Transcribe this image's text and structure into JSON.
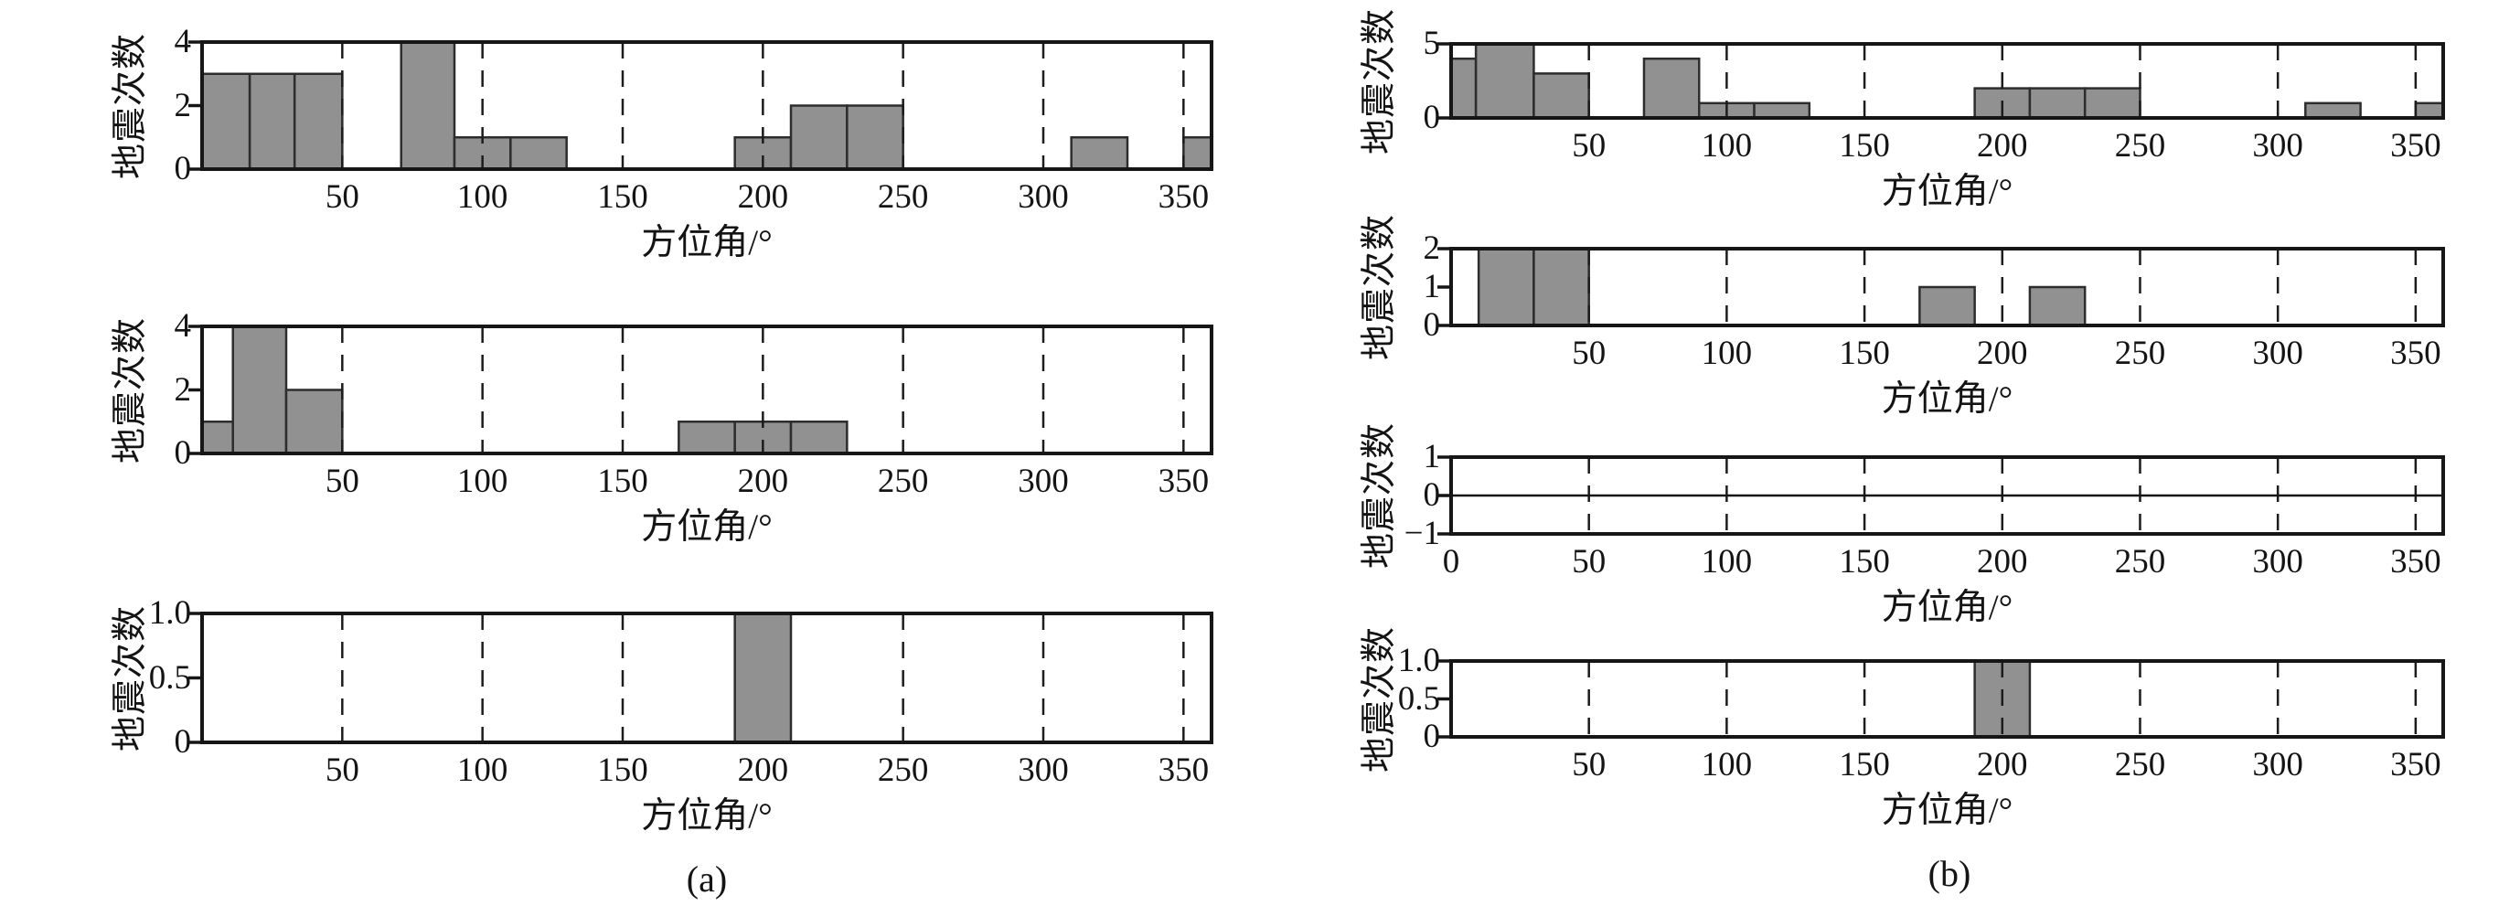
{
  "figure": {
    "background": "#ffffff",
    "x_axis_title": "方位角/°",
    "y_axis_title": "地震次数",
    "panels": [
      {
        "id": "a",
        "caption": "(a)"
      },
      {
        "id": "b",
        "caption": "(b)"
      }
    ]
  },
  "colors": {
    "bar_fill": "#919191",
    "bar_edge": "#2d2d2d",
    "axis_frame": "#161616",
    "gridline": "#1c1c1c",
    "text": "#141414"
  },
  "chart_data": [
    {
      "id": "a1",
      "panel": "a",
      "type": "bar",
      "xlabel": "方位角/°",
      "ylabel": "地震次数",
      "xlim": [
        0,
        360
      ],
      "ylim": [
        0,
        4
      ],
      "xticks": [
        {
          "v": 50,
          "label": "50"
        },
        {
          "v": 100,
          "label": "100"
        },
        {
          "v": 150,
          "label": "150"
        },
        {
          "v": 200,
          "label": "200"
        },
        {
          "v": 250,
          "label": "250"
        },
        {
          "v": 300,
          "label": "300"
        },
        {
          "v": 350,
          "label": "350"
        }
      ],
      "yticks": [
        {
          "v": 0,
          "label": "0"
        },
        {
          "v": 2,
          "label": "2"
        },
        {
          "v": 4,
          "label": "4"
        }
      ],
      "gridlines": [
        50,
        100,
        150,
        200,
        250,
        300,
        350
      ],
      "grid_over_bars": true,
      "zero_line": false,
      "bars": [
        {
          "x0": 0,
          "x1": 17,
          "count": 3
        },
        {
          "x0": 17,
          "x1": 33,
          "count": 3
        },
        {
          "x0": 33,
          "x1": 50,
          "count": 3
        },
        {
          "x0": 71,
          "x1": 90,
          "count": 4
        },
        {
          "x0": 90,
          "x1": 110,
          "count": 1
        },
        {
          "x0": 110,
          "x1": 130,
          "count": 1
        },
        {
          "x0": 190,
          "x1": 210,
          "count": 1
        },
        {
          "x0": 210,
          "x1": 230,
          "count": 2
        },
        {
          "x0": 230,
          "x1": 250,
          "count": 2
        },
        {
          "x0": 310,
          "x1": 330,
          "count": 1
        },
        {
          "x0": 350,
          "x1": 360,
          "count": 1
        }
      ]
    },
    {
      "id": "a2",
      "panel": "a",
      "type": "bar",
      "xlabel": "方位角/°",
      "ylabel": "地震次数",
      "xlim": [
        0,
        360
      ],
      "ylim": [
        0,
        4
      ],
      "xticks": [
        {
          "v": 50,
          "label": "50"
        },
        {
          "v": 100,
          "label": "100"
        },
        {
          "v": 150,
          "label": "150"
        },
        {
          "v": 200,
          "label": "200"
        },
        {
          "v": 250,
          "label": "250"
        },
        {
          "v": 300,
          "label": "300"
        },
        {
          "v": 350,
          "label": "350"
        }
      ],
      "yticks": [
        {
          "v": 0,
          "label": "0"
        },
        {
          "v": 2,
          "label": "2"
        },
        {
          "v": 4,
          "label": "4"
        }
      ],
      "gridlines": [
        50,
        100,
        150,
        200,
        250,
        300,
        350
      ],
      "grid_over_bars": true,
      "zero_line": false,
      "bars": [
        {
          "x0": 0,
          "x1": 11,
          "count": 1
        },
        {
          "x0": 11,
          "x1": 30,
          "count": 4
        },
        {
          "x0": 30,
          "x1": 50,
          "count": 2
        },
        {
          "x0": 170,
          "x1": 190,
          "count": 1
        },
        {
          "x0": 190,
          "x1": 210,
          "count": 1
        },
        {
          "x0": 210,
          "x1": 230,
          "count": 1
        }
      ]
    },
    {
      "id": "a3",
      "panel": "a",
      "type": "bar",
      "xlabel": "方位角/°",
      "ylabel": "地震次数",
      "xlim": [
        0,
        360
      ],
      "ylim": [
        0,
        1
      ],
      "xticks": [
        {
          "v": 50,
          "label": "50"
        },
        {
          "v": 100,
          "label": "100"
        },
        {
          "v": 150,
          "label": "150"
        },
        {
          "v": 200,
          "label": "200"
        },
        {
          "v": 250,
          "label": "250"
        },
        {
          "v": 300,
          "label": "300"
        },
        {
          "v": 350,
          "label": "350"
        }
      ],
      "yticks": [
        {
          "v": 0,
          "label": "0"
        },
        {
          "v": 0.5,
          "label": "0.5"
        },
        {
          "v": 1,
          "label": "1.0"
        }
      ],
      "gridlines": [
        50,
        100,
        150,
        200,
        250,
        300,
        350
      ],
      "grid_over_bars": false,
      "zero_line": false,
      "bars": [
        {
          "x0": 190,
          "x1": 210,
          "count": 1
        }
      ]
    },
    {
      "id": "b1",
      "panel": "b",
      "type": "bar",
      "xlabel": "方位角/°",
      "ylabel": "地震次数",
      "xlim": [
        0,
        360
      ],
      "ylim": [
        0,
        5
      ],
      "xticks": [
        {
          "v": 50,
          "label": "50"
        },
        {
          "v": 100,
          "label": "100"
        },
        {
          "v": 150,
          "label": "150"
        },
        {
          "v": 200,
          "label": "200"
        },
        {
          "v": 250,
          "label": "250"
        },
        {
          "v": 300,
          "label": "300"
        },
        {
          "v": 350,
          "label": "350"
        }
      ],
      "yticks": [
        {
          "v": 0,
          "label": "0"
        },
        {
          "v": 5,
          "label": "5"
        }
      ],
      "gridlines": [
        50,
        100,
        150,
        200,
        250,
        300,
        350
      ],
      "grid_over_bars": true,
      "zero_line": false,
      "bars": [
        {
          "x0": 0,
          "x1": 9,
          "count": 4
        },
        {
          "x0": 9,
          "x1": 30,
          "count": 5
        },
        {
          "x0": 30,
          "x1": 50,
          "count": 3
        },
        {
          "x0": 70,
          "x1": 90,
          "count": 4
        },
        {
          "x0": 90,
          "x1": 110,
          "count": 1
        },
        {
          "x0": 110,
          "x1": 130,
          "count": 1
        },
        {
          "x0": 190,
          "x1": 210,
          "count": 2
        },
        {
          "x0": 210,
          "x1": 230,
          "count": 2
        },
        {
          "x0": 230,
          "x1": 250,
          "count": 2
        },
        {
          "x0": 310,
          "x1": 330,
          "count": 1
        },
        {
          "x0": 350,
          "x1": 360,
          "count": 1
        }
      ]
    },
    {
      "id": "b2",
      "panel": "b",
      "type": "bar",
      "xlabel": "方位角/°",
      "ylabel": "地震次数",
      "xlim": [
        0,
        360
      ],
      "ylim": [
        0,
        2
      ],
      "xticks": [
        {
          "v": 50,
          "label": "50"
        },
        {
          "v": 100,
          "label": "100"
        },
        {
          "v": 150,
          "label": "150"
        },
        {
          "v": 200,
          "label": "200"
        },
        {
          "v": 250,
          "label": "250"
        },
        {
          "v": 300,
          "label": "300"
        },
        {
          "v": 350,
          "label": "350"
        }
      ],
      "yticks": [
        {
          "v": 0,
          "label": "0"
        },
        {
          "v": 1,
          "label": "1"
        },
        {
          "v": 2,
          "label": "2"
        }
      ],
      "gridlines": [
        50,
        100,
        150,
        200,
        250,
        300,
        350
      ],
      "grid_over_bars": true,
      "zero_line": false,
      "bars": [
        {
          "x0": 10,
          "x1": 30,
          "count": 2
        },
        {
          "x0": 30,
          "x1": 50,
          "count": 2
        },
        {
          "x0": 170,
          "x1": 190,
          "count": 1
        },
        {
          "x0": 210,
          "x1": 230,
          "count": 1
        }
      ]
    },
    {
      "id": "b3",
      "panel": "b",
      "type": "bar",
      "xlabel": "方位角/°",
      "ylabel": "地震次数",
      "xlim": [
        0,
        360
      ],
      "ylim": [
        -1,
        1
      ],
      "xticks": [
        {
          "v": 0,
          "label": "0"
        },
        {
          "v": 50,
          "label": "50"
        },
        {
          "v": 100,
          "label": "100"
        },
        {
          "v": 150,
          "label": "150"
        },
        {
          "v": 200,
          "label": "200"
        },
        {
          "v": 250,
          "label": "250"
        },
        {
          "v": 300,
          "label": "300"
        },
        {
          "v": 350,
          "label": "350"
        }
      ],
      "yticks": [
        {
          "v": -1,
          "label": "−1"
        },
        {
          "v": 0,
          "label": "0"
        },
        {
          "v": 1,
          "label": "1"
        }
      ],
      "gridlines": [
        50,
        100,
        150,
        200,
        250,
        300,
        350
      ],
      "grid_over_bars": true,
      "zero_line": true,
      "bars": []
    },
    {
      "id": "b4",
      "panel": "b",
      "type": "bar",
      "xlabel": "方位角/°",
      "ylabel": "地震次数",
      "xlim": [
        0,
        360
      ],
      "ylim": [
        0,
        1
      ],
      "xticks": [
        {
          "v": 50,
          "label": "50"
        },
        {
          "v": 100,
          "label": "100"
        },
        {
          "v": 150,
          "label": "150"
        },
        {
          "v": 200,
          "label": "200"
        },
        {
          "v": 250,
          "label": "250"
        },
        {
          "v": 300,
          "label": "300"
        },
        {
          "v": 350,
          "label": "350"
        }
      ],
      "yticks": [
        {
          "v": 0,
          "label": "0"
        },
        {
          "v": 0.5,
          "label": "0.5"
        },
        {
          "v": 1,
          "label": "1.0"
        }
      ],
      "gridlines": [
        50,
        100,
        150,
        200,
        250,
        300,
        350
      ],
      "grid_over_bars": true,
      "zero_line": false,
      "bars": [
        {
          "x0": 190,
          "x1": 210,
          "count": 1
        }
      ]
    }
  ]
}
